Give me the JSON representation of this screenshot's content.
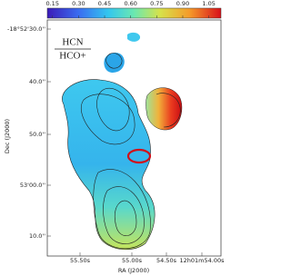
{
  "chart_data": {
    "type": "map",
    "title_numerator": "HCN",
    "title_denominator": "HCO+",
    "x_label": "RA (J2000)",
    "y_label": "Dec (J2000)",
    "x_tick_labels": [
      "55.50s",
      "55.00s",
      "54.50s",
      "12h01m54.00s"
    ],
    "y_tick_labels": [
      "-18°52'30.0''",
      "40.0''",
      "50.0''",
      "53'00.0''",
      "10.0''"
    ],
    "colorbar": {
      "clim": [
        0.12,
        1.12
      ],
      "ticks": [
        0.15,
        {
          "value": 0.3,
          "label": "0.30"
        },
        0.45,
        {
          "value": 0.6,
          "label": "0.60"
        },
        0.75,
        {
          "value": 0.9,
          "label": "0.90"
        },
        1.05
      ]
    }
  }
}
